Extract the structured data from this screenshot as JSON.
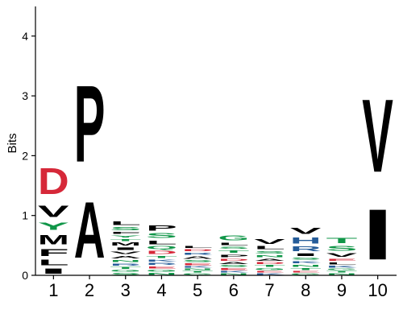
{
  "chart_data": {
    "type": "sequence-logo",
    "ylabel": "Bits",
    "ylim": [
      0,
      4.5
    ],
    "yticks": [
      "0",
      "1",
      "2",
      "3",
      "4"
    ],
    "positions": [
      "1",
      "2",
      "3",
      "4",
      "5",
      "6",
      "7",
      "8",
      "9",
      "10"
    ],
    "colors": {
      "hydrophobic": "#000000",
      "polar": "#109648",
      "basic": "#255c99",
      "acidic": "#d62839"
    },
    "columns": [
      [
        {
          "l": "I",
          "b": 0.14,
          "c": "hydrophobic"
        },
        {
          "l": "L",
          "b": 0.15,
          "c": "hydrophobic"
        },
        {
          "l": "F",
          "b": 0.18,
          "c": "hydrophobic"
        },
        {
          "l": "M",
          "b": 0.25,
          "c": "hydrophobic"
        },
        {
          "l": "Y",
          "b": 0.2,
          "c": "polar"
        },
        {
          "l": "V",
          "b": 0.3,
          "c": "hydrophobic"
        },
        {
          "l": "D",
          "b": 0.7,
          "c": "acidic"
        }
      ],
      [
        {
          "l": "A",
          "b": 1.5,
          "c": "hydrophobic"
        },
        {
          "l": "P",
          "b": 2.05,
          "c": "hydrophobic"
        }
      ],
      [
        {
          "l": "S",
          "b": 0.05,
          "c": "polar"
        },
        {
          "l": "G",
          "b": 0.05,
          "c": "polar"
        },
        {
          "l": "T",
          "b": 0.05,
          "c": "polar"
        },
        {
          "l": "R",
          "b": 0.06,
          "c": "basic"
        },
        {
          "l": "N",
          "b": 0.06,
          "c": "polar"
        },
        {
          "l": "A",
          "b": 0.07,
          "c": "hydrophobic"
        },
        {
          "l": "V",
          "b": 0.07,
          "c": "hydrophobic"
        },
        {
          "l": "I",
          "b": 0.07,
          "c": "hydrophobic"
        },
        {
          "l": "M",
          "b": 0.08,
          "c": "hydrophobic"
        },
        {
          "l": "T",
          "b": 0.06,
          "c": "polar"
        },
        {
          "l": "Y",
          "b": 0.06,
          "c": "polar"
        },
        {
          "l": "F",
          "b": 0.06,
          "c": "hydrophobic"
        },
        {
          "l": "S",
          "b": 0.08,
          "c": "polar"
        },
        {
          "l": "L",
          "b": 0.1,
          "c": "hydrophobic"
        }
      ],
      [
        {
          "l": "N",
          "b": 0.05,
          "c": "polar"
        },
        {
          "l": "G",
          "b": 0.05,
          "c": "polar"
        },
        {
          "l": "E",
          "b": 0.06,
          "c": "acidic"
        },
        {
          "l": "R",
          "b": 0.06,
          "c": "basic"
        },
        {
          "l": "K",
          "b": 0.06,
          "c": "basic"
        },
        {
          "l": "T",
          "b": 0.06,
          "c": "polar"
        },
        {
          "l": "D",
          "b": 0.08,
          "c": "acidic"
        },
        {
          "l": "Q",
          "b": 0.08,
          "c": "polar"
        },
        {
          "l": "L",
          "b": 0.1,
          "c": "hydrophobic"
        },
        {
          "l": "S",
          "b": 0.12,
          "c": "polar"
        },
        {
          "l": "P",
          "b": 0.14,
          "c": "hydrophobic"
        }
      ],
      [
        {
          "l": "G",
          "b": 0.04,
          "c": "polar"
        },
        {
          "l": "T",
          "b": 0.04,
          "c": "polar"
        },
        {
          "l": "N",
          "b": 0.04,
          "c": "polar"
        },
        {
          "l": "K",
          "b": 0.04,
          "c": "basic"
        },
        {
          "l": "E",
          "b": 0.05,
          "c": "acidic"
        },
        {
          "l": "S",
          "b": 0.05,
          "c": "polar"
        },
        {
          "l": "A",
          "b": 0.07,
          "c": "hydrophobic"
        },
        {
          "l": "R",
          "b": 0.06,
          "c": "basic"
        },
        {
          "l": "D",
          "b": 0.06,
          "c": "acidic"
        },
        {
          "l": "L",
          "b": 0.05,
          "c": "hydrophobic"
        }
      ],
      [
        {
          "l": "N",
          "b": 0.04,
          "c": "polar"
        },
        {
          "l": "K",
          "b": 0.04,
          "c": "basic"
        },
        {
          "l": "E",
          "b": 0.05,
          "c": "acidic"
        },
        {
          "l": "S",
          "b": 0.05,
          "c": "polar"
        },
        {
          "l": "A",
          "b": 0.05,
          "c": "hydrophobic"
        },
        {
          "l": "D",
          "b": 0.06,
          "c": "acidic"
        },
        {
          "l": "P",
          "b": 0.07,
          "c": "hydrophobic"
        },
        {
          "l": "T",
          "b": 0.07,
          "c": "polar"
        },
        {
          "l": "S",
          "b": 0.06,
          "c": "polar"
        },
        {
          "l": "L",
          "b": 0.07,
          "c": "hydrophobic"
        },
        {
          "l": "G",
          "b": 0.12,
          "c": "polar"
        }
      ],
      [
        {
          "l": "K",
          "b": 0.04,
          "c": "basic"
        },
        {
          "l": "E",
          "b": 0.04,
          "c": "acidic"
        },
        {
          "l": "G",
          "b": 0.05,
          "c": "polar"
        },
        {
          "l": "T",
          "b": 0.05,
          "c": "polar"
        },
        {
          "l": "D",
          "b": 0.05,
          "c": "acidic"
        },
        {
          "l": "A",
          "b": 0.06,
          "c": "hydrophobic"
        },
        {
          "l": "N",
          "b": 0.06,
          "c": "polar"
        },
        {
          "l": "S",
          "b": 0.07,
          "c": "polar"
        },
        {
          "l": "L",
          "b": 0.08,
          "c": "hydrophobic"
        },
        {
          "l": "V",
          "b": 0.13,
          "c": "hydrophobic"
        }
      ],
      [
        {
          "l": "G",
          "b": 0.04,
          "c": "polar"
        },
        {
          "l": "E",
          "b": 0.04,
          "c": "acidic"
        },
        {
          "l": "T",
          "b": 0.05,
          "c": "polar"
        },
        {
          "l": "N",
          "b": 0.06,
          "c": "polar"
        },
        {
          "l": "K",
          "b": 0.06,
          "c": "basic"
        },
        {
          "l": "S",
          "b": 0.06,
          "c": "polar"
        },
        {
          "l": "I",
          "b": 0.07,
          "c": "hydrophobic"
        },
        {
          "l": "R",
          "b": 0.12,
          "c": "basic"
        },
        {
          "l": "H",
          "b": 0.16,
          "c": "basic"
        },
        {
          "l": "V",
          "b": 0.16,
          "c": "hydrophobic"
        }
      ],
      [
        {
          "l": "N",
          "b": 0.04,
          "c": "polar"
        },
        {
          "l": "T",
          "b": 0.04,
          "c": "polar"
        },
        {
          "l": "G",
          "b": 0.04,
          "c": "polar"
        },
        {
          "l": "K",
          "b": 0.05,
          "c": "basic"
        },
        {
          "l": "L",
          "b": 0.06,
          "c": "hydrophobic"
        },
        {
          "l": "E",
          "b": 0.06,
          "c": "acidic"
        },
        {
          "l": "V",
          "b": 0.1,
          "c": "hydrophobic"
        },
        {
          "l": "S",
          "b": 0.12,
          "c": "polar"
        },
        {
          "l": "T",
          "b": 0.14,
          "c": "polar"
        }
      ],
      [
        {
          "l": "I",
          "b": 1.35,
          "c": "hydrophobic"
        },
        {
          "l": "V",
          "b": 1.95,
          "c": "hydrophobic"
        }
      ]
    ]
  }
}
